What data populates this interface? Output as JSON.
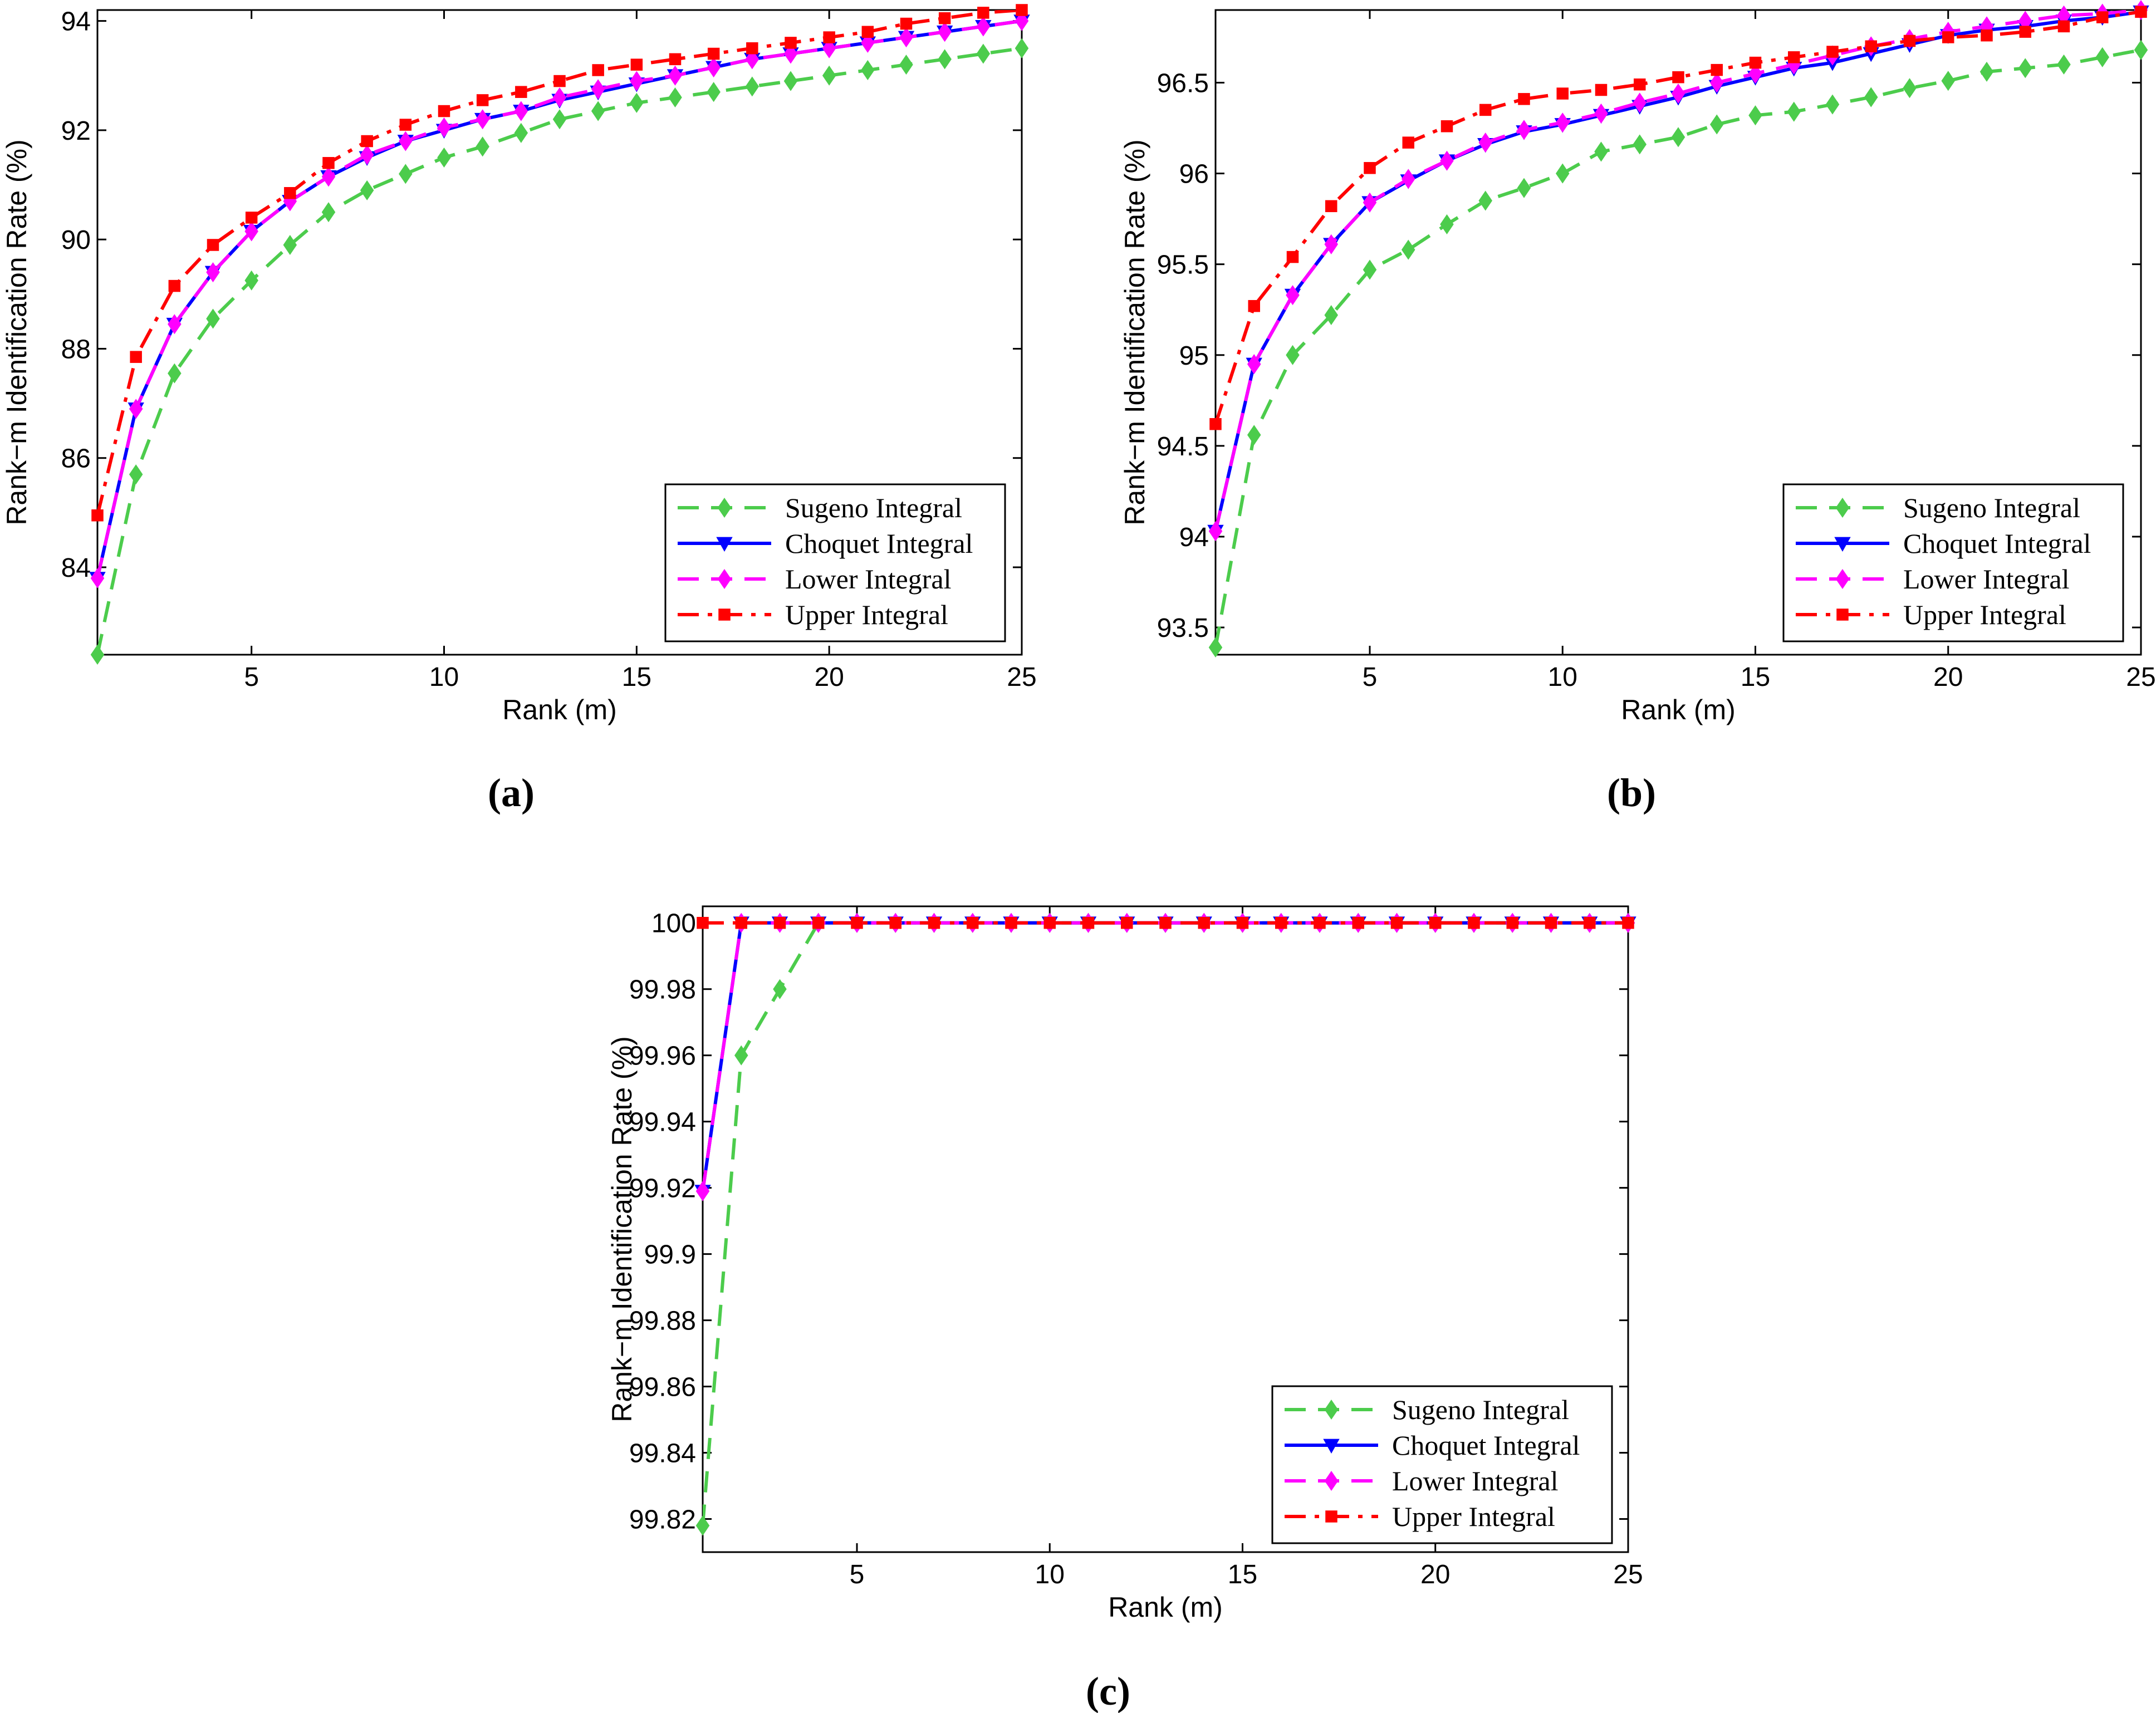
{
  "colors": {
    "sugeno": "#4ccc4c",
    "choquet": "#0000ff",
    "lower": "#ff00ff",
    "upper": "#ff0000"
  },
  "chart_data": [
    {
      "type": "line",
      "panel_label": "(a)",
      "xlabel": "Rank (m)",
      "ylabel": "Rank−m Identification Rate (%)",
      "xlim": [
        1,
        25
      ],
      "ylim": [
        82.4,
        94.2
      ],
      "xticks": [
        5,
        10,
        15,
        20,
        25
      ],
      "yticks": [
        84,
        86,
        88,
        90,
        92,
        94
      ],
      "legend_position": "bottom-right",
      "x": [
        1,
        2,
        3,
        4,
        5,
        6,
        7,
        8,
        9,
        10,
        11,
        12,
        13,
        14,
        15,
        16,
        17,
        18,
        19,
        20,
        21,
        22,
        23,
        24,
        25
      ],
      "series": [
        {
          "name": "Sugeno Integral",
          "key": "sugeno",
          "style": "dashed",
          "marker": "diamond",
          "values": [
            82.4,
            85.7,
            87.55,
            88.55,
            89.25,
            89.9,
            90.5,
            90.9,
            91.2,
            91.5,
            91.7,
            91.95,
            92.2,
            92.35,
            92.5,
            92.6,
            92.7,
            92.8,
            92.9,
            93.0,
            93.1,
            93.2,
            93.3,
            93.4,
            93.5
          ]
        },
        {
          "name": "Choquet Integral",
          "key": "choquet",
          "style": "solid",
          "marker": "triangle-down",
          "values": [
            83.8,
            86.9,
            88.45,
            89.4,
            90.15,
            90.7,
            91.15,
            91.5,
            91.8,
            92.0,
            92.2,
            92.35,
            92.55,
            92.7,
            92.85,
            93.0,
            93.15,
            93.3,
            93.4,
            93.5,
            93.6,
            93.7,
            93.8,
            93.9,
            94.0
          ]
        },
        {
          "name": "Lower Integral",
          "key": "lower",
          "style": "dashed",
          "marker": "diamond",
          "values": [
            83.8,
            86.9,
            88.45,
            89.4,
            90.15,
            90.7,
            91.15,
            91.55,
            91.8,
            92.05,
            92.2,
            92.35,
            92.6,
            92.75,
            92.9,
            93.0,
            93.15,
            93.3,
            93.4,
            93.5,
            93.6,
            93.7,
            93.8,
            93.9,
            94.0
          ]
        },
        {
          "name": "Upper Integral",
          "key": "upper",
          "style": "dashdot",
          "marker": "square",
          "values": [
            84.95,
            87.85,
            89.15,
            89.9,
            90.4,
            90.85,
            91.4,
            91.8,
            92.1,
            92.35,
            92.55,
            92.7,
            92.9,
            93.1,
            93.2,
            93.3,
            93.4,
            93.5,
            93.6,
            93.7,
            93.8,
            93.95,
            94.05,
            94.15,
            94.2
          ]
        }
      ]
    },
    {
      "type": "line",
      "panel_label": "(b)",
      "xlabel": "Rank (m)",
      "ylabel": "Rank−m Identification Rate (%)",
      "xlim": [
        1,
        25
      ],
      "ylim": [
        93.35,
        96.9
      ],
      "xticks": [
        5,
        10,
        15,
        20,
        25
      ],
      "yticks": [
        93.5,
        94,
        94.5,
        95,
        95.5,
        96,
        96.5
      ],
      "legend_position": "bottom-right",
      "x": [
        1,
        2,
        3,
        4,
        5,
        6,
        7,
        8,
        9,
        10,
        11,
        12,
        13,
        14,
        15,
        16,
        17,
        18,
        19,
        20,
        21,
        22,
        23,
        24,
        25
      ],
      "series": [
        {
          "name": "Sugeno Integral",
          "key": "sugeno",
          "style": "dashed",
          "marker": "diamond",
          "values": [
            93.39,
            94.56,
            95.0,
            95.22,
            95.47,
            95.58,
            95.72,
            95.85,
            95.92,
            96.0,
            96.12,
            96.16,
            96.2,
            96.27,
            96.32,
            96.34,
            96.38,
            96.42,
            96.47,
            96.51,
            96.56,
            96.58,
            96.6,
            96.64,
            96.68
          ]
        },
        {
          "name": "Choquet Integral",
          "key": "choquet",
          "style": "solid",
          "marker": "triangle-down",
          "values": [
            94.03,
            94.95,
            95.33,
            95.61,
            95.84,
            95.96,
            96.07,
            96.16,
            96.23,
            96.27,
            96.32,
            96.37,
            96.42,
            96.48,
            96.53,
            96.58,
            96.61,
            96.66,
            96.71,
            96.76,
            96.79,
            96.81,
            96.84,
            96.86,
            96.89
          ]
        },
        {
          "name": "Lower Integral",
          "key": "lower",
          "style": "dashed",
          "marker": "diamond",
          "values": [
            94.03,
            94.95,
            95.33,
            95.61,
            95.84,
            95.97,
            96.07,
            96.17,
            96.24,
            96.28,
            96.33,
            96.39,
            96.44,
            96.5,
            96.55,
            96.6,
            96.65,
            96.7,
            96.74,
            96.78,
            96.81,
            96.84,
            96.87,
            96.88,
            96.9
          ]
        },
        {
          "name": "Upper Integral",
          "key": "upper",
          "style": "dashdot",
          "marker": "square",
          "values": [
            94.62,
            95.27,
            95.54,
            95.82,
            96.03,
            96.17,
            96.26,
            96.35,
            96.41,
            96.44,
            96.46,
            96.49,
            96.53,
            96.57,
            96.61,
            96.64,
            96.67,
            96.7,
            96.73,
            96.75,
            96.76,
            96.78,
            96.81,
            96.86,
            96.89
          ]
        }
      ]
    },
    {
      "type": "line",
      "panel_label": "(c)",
      "xlabel": "Rank (m)",
      "ylabel": "Rank−m Identification Rate (%)",
      "xlim": [
        1,
        25
      ],
      "ylim": [
        99.81,
        100.005
      ],
      "xticks": [
        5,
        10,
        15,
        20,
        25
      ],
      "yticks": [
        99.82,
        99.84,
        99.86,
        99.88,
        99.9,
        99.92,
        99.94,
        99.96,
        99.98,
        100
      ],
      "legend_position": "bottom-right",
      "x": [
        1,
        2,
        3,
        4,
        5,
        6,
        7,
        8,
        9,
        10,
        11,
        12,
        13,
        14,
        15,
        16,
        17,
        18,
        19,
        20,
        21,
        22,
        23,
        24,
        25
      ],
      "series": [
        {
          "name": "Sugeno Integral",
          "key": "sugeno",
          "style": "dashed",
          "marker": "diamond",
          "values": [
            99.818,
            99.96,
            99.98,
            100,
            100,
            100,
            100,
            100,
            100,
            100,
            100,
            100,
            100,
            100,
            100,
            100,
            100,
            100,
            100,
            100,
            100,
            100,
            100,
            100,
            100
          ]
        },
        {
          "name": "Choquet Integral",
          "key": "choquet",
          "style": "solid",
          "marker": "triangle-down",
          "values": [
            99.919,
            100,
            100,
            100,
            100,
            100,
            100,
            100,
            100,
            100,
            100,
            100,
            100,
            100,
            100,
            100,
            100,
            100,
            100,
            100,
            100,
            100,
            100,
            100,
            100
          ]
        },
        {
          "name": "Lower Integral",
          "key": "lower",
          "style": "dashed",
          "marker": "diamond",
          "values": [
            99.919,
            100,
            100,
            100,
            100,
            100,
            100,
            100,
            100,
            100,
            100,
            100,
            100,
            100,
            100,
            100,
            100,
            100,
            100,
            100,
            100,
            100,
            100,
            100,
            100
          ]
        },
        {
          "name": "Upper Integral",
          "key": "upper",
          "style": "dashdot",
          "marker": "square",
          "values": [
            100,
            100,
            100,
            100,
            100,
            100,
            100,
            100,
            100,
            100,
            100,
            100,
            100,
            100,
            100,
            100,
            100,
            100,
            100,
            100,
            100,
            100,
            100,
            100,
            100
          ]
        }
      ]
    }
  ]
}
